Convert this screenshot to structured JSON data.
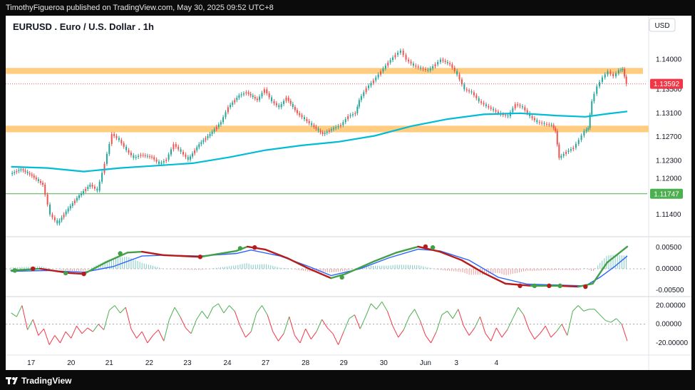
{
  "header": {
    "publisher_line": "TimothyFigueroa published on TradingView.com, May 30, 2025 09:52 UTC+8"
  },
  "footer": {
    "brand": "TradingView",
    "logo_icon": "tradingview-logo-icon"
  },
  "chart_data": {
    "type": "line",
    "title": "EURUSD . Euro / U.S. Dollar . 1h",
    "currency": "USD",
    "price_panel": {
      "y_ticks": [
        "1.14000",
        "1.13500",
        "1.13100",
        "1.12700",
        "1.12300",
        "1.12000",
        "1.11400"
      ],
      "y_tick_values": [
        1.14,
        1.135,
        1.131,
        1.127,
        1.123,
        1.12,
        1.114
      ],
      "ylim": [
        1.1105,
        1.1445
      ],
      "current_price_label": "1.13592",
      "current_price": 1.13592,
      "horizontal_line_label": "1.11747",
      "horizontal_line": 1.11747,
      "resistance_zone": [
        1.1376,
        1.1386
      ],
      "support_zone": [
        1.1278,
        1.1289
      ],
      "price_series": [
        [
          0,
          1.1208
        ],
        [
          0.3,
          1.1216
        ],
        [
          0.6,
          1.1205
        ],
        [
          0.9,
          1.119
        ],
        [
          1.1,
          1.114
        ],
        [
          1.3,
          1.1125
        ],
        [
          1.6,
          1.115
        ],
        [
          1.9,
          1.1172
        ],
        [
          2.2,
          1.119
        ],
        [
          2.4,
          1.118
        ],
        [
          2.6,
          1.1225
        ],
        [
          2.8,
          1.1275
        ],
        [
          3.0,
          1.1265
        ],
        [
          3.2,
          1.1248
        ],
        [
          3.4,
          1.1235
        ],
        [
          3.6,
          1.124
        ],
        [
          3.9,
          1.1236
        ],
        [
          4.1,
          1.1225
        ],
        [
          4.3,
          1.1232
        ],
        [
          4.5,
          1.1258
        ],
        [
          4.7,
          1.1245
        ],
        [
          4.9,
          1.1232
        ],
        [
          5.2,
          1.1258
        ],
        [
          5.5,
          1.1275
        ],
        [
          5.8,
          1.1295
        ],
        [
          6.0,
          1.132
        ],
        [
          6.3,
          1.134
        ],
        [
          6.5,
          1.1345
        ],
        [
          6.8,
          1.1332
        ],
        [
          7.0,
          1.135
        ],
        [
          7.2,
          1.133
        ],
        [
          7.4,
          1.132
        ],
        [
          7.6,
          1.1336
        ],
        [
          7.9,
          1.131
        ],
        [
          8.1,
          1.13
        ],
        [
          8.3,
          1.129
        ],
        [
          8.6,
          1.1275
        ],
        [
          8.9,
          1.1285
        ],
        [
          9.1,
          1.129
        ],
        [
          9.3,
          1.1305
        ],
        [
          9.5,
          1.131
        ],
        [
          9.6,
          1.1332
        ],
        [
          9.8,
          1.1352
        ],
        [
          10.0,
          1.1365
        ],
        [
          10.2,
          1.138
        ],
        [
          10.4,
          1.1395
        ],
        [
          10.6,
          1.1408
        ],
        [
          10.75,
          1.1415
        ],
        [
          10.9,
          1.14
        ],
        [
          11.1,
          1.139
        ],
        [
          11.3,
          1.1385
        ],
        [
          11.5,
          1.1382
        ],
        [
          11.7,
          1.1392
        ],
        [
          11.85,
          1.14
        ],
        [
          12.1,
          1.1392
        ],
        [
          12.3,
          1.1375
        ],
        [
          12.5,
          1.135
        ],
        [
          12.7,
          1.1345
        ],
        [
          12.9,
          1.133
        ],
        [
          13.1,
          1.1322
        ],
        [
          13.3,
          1.1315
        ],
        [
          13.5,
          1.1308
        ],
        [
          13.7,
          1.1305
        ],
        [
          13.9,
          1.1325
        ],
        [
          14.1,
          1.132
        ],
        [
          14.3,
          1.1305
        ],
        [
          14.5,
          1.1295
        ],
        [
          14.7,
          1.1292
        ],
        [
          14.9,
          1.129
        ],
        [
          15.0,
          1.128
        ],
        [
          15.1,
          1.1235
        ],
        [
          15.3,
          1.1245
        ],
        [
          15.5,
          1.1252
        ],
        [
          15.65,
          1.1265
        ],
        [
          15.8,
          1.128
        ],
        [
          15.9,
          1.1285
        ],
        [
          16.0,
          1.133
        ],
        [
          16.15,
          1.1355
        ],
        [
          16.3,
          1.137
        ],
        [
          16.45,
          1.138
        ],
        [
          16.6,
          1.1372
        ],
        [
          16.75,
          1.1382
        ],
        [
          16.85,
          1.1384
        ],
        [
          16.95,
          1.1359
        ]
      ],
      "moving_average": [
        [
          0,
          1.122
        ],
        [
          1,
          1.1218
        ],
        [
          2,
          1.1212
        ],
        [
          2.5,
          1.1215
        ],
        [
          3,
          1.1218
        ],
        [
          4,
          1.1222
        ],
        [
          5,
          1.1226
        ],
        [
          6,
          1.1236
        ],
        [
          7,
          1.1248
        ],
        [
          8,
          1.1256
        ],
        [
          9,
          1.1262
        ],
        [
          10,
          1.1272
        ],
        [
          11,
          1.1288
        ],
        [
          12,
          1.13
        ],
        [
          13,
          1.1308
        ],
        [
          14,
          1.131
        ],
        [
          15,
          1.1306
        ],
        [
          15.8,
          1.1304
        ],
        [
          16.4,
          1.1309
        ],
        [
          16.95,
          1.1313
        ]
      ]
    },
    "macd_panel": {
      "y_ticks": [
        "0.00500",
        "0.00000",
        "-0.00500"
      ],
      "y_tick_values": [
        0.005,
        0.0,
        -0.005
      ],
      "ylim": [
        -0.0062,
        0.0072
      ],
      "macd_line": [
        [
          0,
          -0.0004
        ],
        [
          0.8,
          0.0
        ],
        [
          1.6,
          -0.001
        ],
        [
          2.0,
          -0.0012
        ],
        [
          2.6,
          0.0015
        ],
        [
          3.2,
          0.0038
        ],
        [
          3.6,
          0.004
        ],
        [
          4.2,
          0.0032
        ],
        [
          5.2,
          0.0028
        ],
        [
          6.2,
          0.0042
        ],
        [
          6.5,
          0.0052
        ],
        [
          7.0,
          0.0045
        ],
        [
          7.6,
          0.0025
        ],
        [
          8.2,
          0.0
        ],
        [
          8.8,
          -0.0022
        ],
        [
          9.2,
          -0.0012
        ],
        [
          10.0,
          0.0018
        ],
        [
          10.6,
          0.0038
        ],
        [
          11.2,
          0.0052
        ],
        [
          11.8,
          0.004
        ],
        [
          12.4,
          0.002
        ],
        [
          13.0,
          -0.001
        ],
        [
          13.6,
          -0.0035
        ],
        [
          14.3,
          -0.004
        ],
        [
          15.1,
          -0.004
        ],
        [
          15.6,
          -0.0042
        ],
        [
          16.0,
          -0.0035
        ],
        [
          16.4,
          0.0015
        ],
        [
          16.95,
          0.0052
        ]
      ],
      "signal_line": [
        [
          0,
          -0.0006
        ],
        [
          1,
          -0.0004
        ],
        [
          2,
          -0.0008
        ],
        [
          2.8,
          0.0005
        ],
        [
          3.6,
          0.003
        ],
        [
          4.2,
          0.0032
        ],
        [
          5.2,
          0.003
        ],
        [
          6.2,
          0.0036
        ],
        [
          6.6,
          0.0044
        ],
        [
          7.4,
          0.003
        ],
        [
          8.2,
          0.0005
        ],
        [
          8.8,
          -0.0016
        ],
        [
          9.6,
          0.0
        ],
        [
          10.4,
          0.0026
        ],
        [
          11.2,
          0.0046
        ],
        [
          11.8,
          0.0042
        ],
        [
          12.6,
          0.002
        ],
        [
          13.4,
          -0.002
        ],
        [
          14.2,
          -0.0036
        ],
        [
          15.0,
          -0.0038
        ],
        [
          15.8,
          -0.004
        ],
        [
          16.2,
          -0.002
        ],
        [
          16.6,
          0.0005
        ],
        [
          16.95,
          0.003
        ]
      ],
      "cross_points": [
        [
          0.1,
          -0.0004
        ],
        [
          0.6,
          0.0
        ],
        [
          1.5,
          -0.001
        ],
        [
          2.0,
          -0.0012
        ],
        [
          3.0,
          0.0036
        ],
        [
          5.2,
          0.0028
        ],
        [
          6.3,
          0.0048
        ],
        [
          6.7,
          0.005
        ],
        [
          9.1,
          -0.002
        ],
        [
          11.4,
          0.0052
        ],
        [
          11.6,
          0.005
        ],
        [
          14.0,
          -0.004
        ],
        [
          14.4,
          -0.004
        ],
        [
          14.8,
          -0.004
        ],
        [
          15.1,
          -0.004
        ],
        [
          15.8,
          -0.0042
        ]
      ]
    },
    "oscillator_panel": {
      "y_ticks": [
        "20.00000",
        "0.00000",
        "-20.00000"
      ],
      "y_tick_values": [
        20,
        0,
        -20
      ],
      "ylim": [
        -30,
        28
      ],
      "values": [
        [
          0,
          12
        ],
        [
          0.15,
          8
        ],
        [
          0.3,
          20
        ],
        [
          0.45,
          -6
        ],
        [
          0.6,
          5
        ],
        [
          0.75,
          -12
        ],
        [
          0.9,
          -5
        ],
        [
          1.05,
          -22
        ],
        [
          1.2,
          -12
        ],
        [
          1.35,
          -20
        ],
        [
          1.5,
          -8
        ],
        [
          1.65,
          -15
        ],
        [
          1.8,
          -2
        ],
        [
          1.95,
          -10
        ],
        [
          2.1,
          -4
        ],
        [
          2.25,
          -8
        ],
        [
          2.4,
          0
        ],
        [
          2.55,
          -6
        ],
        [
          2.7,
          15
        ],
        [
          2.85,
          20
        ],
        [
          3.0,
          12
        ],
        [
          3.15,
          18
        ],
        [
          3.3,
          -5
        ],
        [
          3.45,
          -15
        ],
        [
          3.6,
          -8
        ],
        [
          3.75,
          -20
        ],
        [
          3.9,
          -12
        ],
        [
          4.05,
          -6
        ],
        [
          4.2,
          -18
        ],
        [
          4.35,
          5
        ],
        [
          4.5,
          18
        ],
        [
          4.65,
          8
        ],
        [
          4.8,
          -4
        ],
        [
          4.95,
          -10
        ],
        [
          5.1,
          5
        ],
        [
          5.25,
          14
        ],
        [
          5.4,
          6
        ],
        [
          5.55,
          18
        ],
        [
          5.7,
          22
        ],
        [
          5.85,
          12
        ],
        [
          6.0,
          20
        ],
        [
          6.15,
          14
        ],
        [
          6.3,
          -2
        ],
        [
          6.45,
          -14
        ],
        [
          6.6,
          -8
        ],
        [
          6.75,
          12
        ],
        [
          6.9,
          20
        ],
        [
          7.05,
          10
        ],
        [
          7.2,
          -8
        ],
        [
          7.35,
          -18
        ],
        [
          7.5,
          -10
        ],
        [
          7.65,
          8
        ],
        [
          7.8,
          -12
        ],
        [
          7.95,
          -20
        ],
        [
          8.1,
          -5
        ],
        [
          8.25,
          -16
        ],
        [
          8.4,
          -8
        ],
        [
          8.55,
          5
        ],
        [
          8.7,
          -4
        ],
        [
          8.85,
          -10
        ],
        [
          9.0,
          -22
        ],
        [
          9.15,
          -8
        ],
        [
          9.3,
          6
        ],
        [
          9.45,
          10
        ],
        [
          9.6,
          -5
        ],
        [
          9.75,
          8
        ],
        [
          9.9,
          22
        ],
        [
          10.05,
          16
        ],
        [
          10.2,
          24
        ],
        [
          10.35,
          14
        ],
        [
          10.5,
          -2
        ],
        [
          10.65,
          -14
        ],
        [
          10.8,
          -6
        ],
        [
          10.95,
          8
        ],
        [
          11.1,
          16
        ],
        [
          11.25,
          4
        ],
        [
          11.4,
          -12
        ],
        [
          11.55,
          -20
        ],
        [
          11.7,
          -8
        ],
        [
          11.85,
          10
        ],
        [
          12.0,
          14
        ],
        [
          12.15,
          6
        ],
        [
          12.3,
          16
        ],
        [
          12.45,
          -2
        ],
        [
          12.6,
          -12
        ],
        [
          12.75,
          -4
        ],
        [
          12.9,
          8
        ],
        [
          13.05,
          -10
        ],
        [
          13.2,
          -18
        ],
        [
          13.35,
          -4
        ],
        [
          13.5,
          -14
        ],
        [
          13.65,
          -6
        ],
        [
          13.8,
          6
        ],
        [
          13.95,
          18
        ],
        [
          14.1,
          10
        ],
        [
          14.25,
          -6
        ],
        [
          14.4,
          -16
        ],
        [
          14.55,
          -10
        ],
        [
          14.7,
          -2
        ],
        [
          14.85,
          -14
        ],
        [
          15.0,
          -8
        ],
        [
          15.15,
          0
        ],
        [
          15.3,
          -12
        ],
        [
          15.45,
          14
        ],
        [
          15.6,
          20
        ],
        [
          15.75,
          14
        ],
        [
          15.9,
          16
        ],
        [
          16.05,
          16
        ],
        [
          16.2,
          10
        ],
        [
          16.35,
          4
        ],
        [
          16.5,
          2
        ],
        [
          16.65,
          6
        ],
        [
          16.8,
          0
        ],
        [
          16.95,
          -18
        ]
      ]
    },
    "x_ticks": [
      {
        "label": "17",
        "x": 0.55
      },
      {
        "label": "20",
        "x": 1.65
      },
      {
        "label": "21",
        "x": 2.7
      },
      {
        "label": "22",
        "x": 3.8
      },
      {
        "label": "23",
        "x": 4.85
      },
      {
        "label": "24",
        "x": 5.95
      },
      {
        "label": "27",
        "x": 7.0
      },
      {
        "label": "28",
        "x": 8.1
      },
      {
        "label": "29",
        "x": 9.15
      },
      {
        "label": "30",
        "x": 10.25
      },
      {
        "label": "Jun",
        "x": 11.4
      },
      {
        "label": "3",
        "x": 12.25
      },
      {
        "label": "4",
        "x": 13.35
      }
    ],
    "colors": {
      "bull": "#26a69a",
      "bear": "#ef5350",
      "ma": "#00bcd4",
      "zone": "#ffcc80",
      "hline": "#4caf50",
      "macd_line": "#43a047",
      "macd_line_down": "#b71c1c",
      "signal_line": "#2962ff",
      "price_label_bg": "#f23645",
      "hline_label_bg": "#4caf50",
      "osc_up": "#4caf50",
      "osc_down": "#f23645"
    }
  }
}
